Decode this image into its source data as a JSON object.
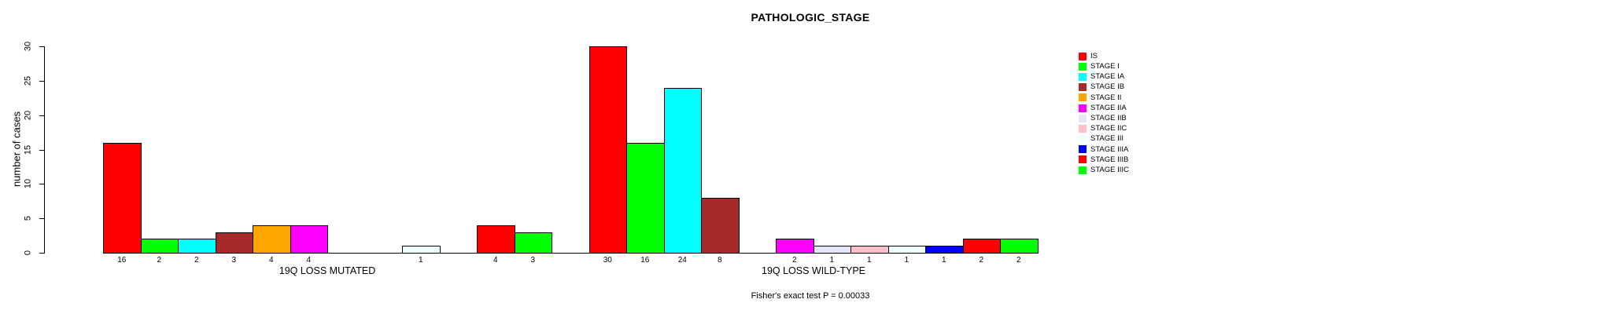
{
  "chart_data": {
    "type": "bar",
    "title": "PATHOLOGIC_STAGE",
    "ylabel": "number of cases",
    "ylim": [
      0,
      30
    ],
    "yticks": [
      0,
      5,
      10,
      15,
      20,
      25,
      30
    ],
    "grid": false,
    "legend_position": "right",
    "categories": [
      "IS",
      "STAGE I",
      "STAGE IA",
      "STAGE IB",
      "STAGE II",
      "STAGE IIA",
      "STAGE IIB",
      "STAGE IIC",
      "STAGE III",
      "STAGE IIIA",
      "STAGE IIIB",
      "STAGE IIIC"
    ],
    "colors": [
      "#FF0000",
      "#00FF00",
      "#00FFFF",
      "#A52A2A",
      "#FFA500",
      "#FF00FF",
      "#E6E6FA",
      "#FFC0CB",
      "#F0FFFF",
      "#0000FF",
      "#FF0000",
      "#00FF00"
    ],
    "series": [
      {
        "name": "19Q LOSS MUTATED",
        "values": [
          16,
          2,
          2,
          3,
          4,
          4,
          0,
          0,
          1,
          0,
          4,
          3
        ]
      },
      {
        "name": "19Q LOSS WILD-TYPE",
        "values": [
          30,
          16,
          24,
          8,
          0,
          2,
          1,
          1,
          1,
          1,
          2,
          2
        ]
      }
    ],
    "annotation": "Fisher's exact test P = 0.00033"
  }
}
